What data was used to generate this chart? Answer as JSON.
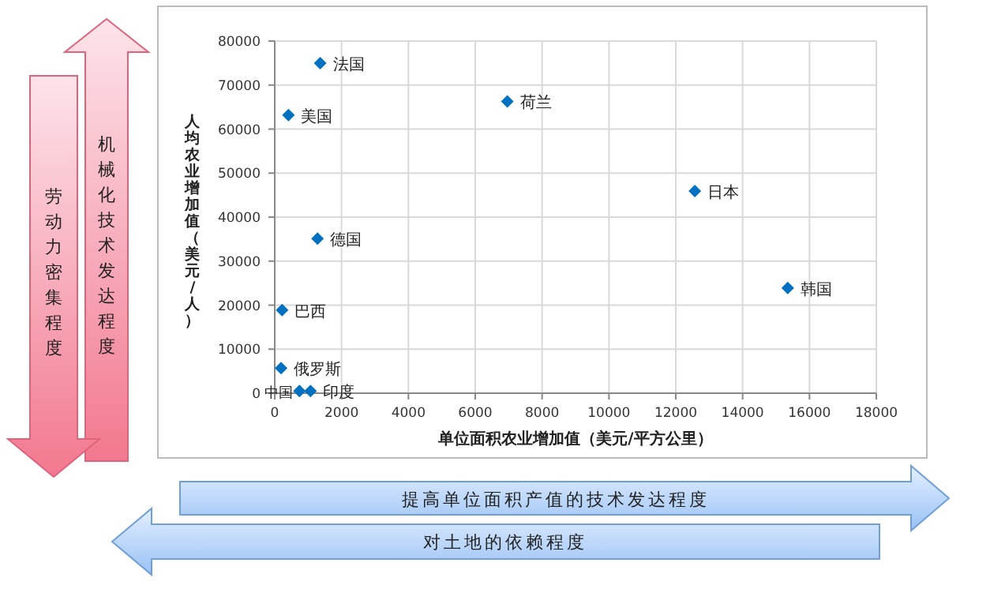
{
  "chart_data": {
    "type": "scatter",
    "xlabel": "单位面积农业增加值（美元/平方公里）",
    "ylabel": "人均农业增加值（美元/人）",
    "xlim": [
      0,
      18000
    ],
    "ylim": [
      0,
      80000
    ],
    "xticks": [
      0,
      2000,
      4000,
      6000,
      8000,
      10000,
      12000,
      14000,
      16000,
      18000
    ],
    "yticks": [
      0,
      10000,
      20000,
      30000,
      40000,
      50000,
      60000,
      70000,
      80000
    ],
    "grid": true,
    "marker": "diamond",
    "series": [
      {
        "name": "法国",
        "color": "#0070c0",
        "x": [
          1360
        ],
        "values": [
          75000
        ]
      },
      {
        "name": "荷兰",
        "color": "#0070c0",
        "x": [
          6960
        ],
        "values": [
          66300
        ]
      },
      {
        "name": "美国",
        "color": "#0070c0",
        "x": [
          410
        ],
        "values": [
          63200
        ]
      },
      {
        "name": "日本",
        "color": "#0070c0",
        "x": [
          12570
        ],
        "values": [
          45900
        ]
      },
      {
        "name": "德国",
        "color": "#0070c0",
        "x": [
          1280
        ],
        "values": [
          35100
        ]
      },
      {
        "name": "韩国",
        "color": "#0070c0",
        "x": [
          15350
        ],
        "values": [
          23900
        ]
      },
      {
        "name": "巴西",
        "color": "#0070c0",
        "x": [
          220
        ],
        "values": [
          18900
        ]
      },
      {
        "name": "俄罗斯",
        "color": "#0070c0",
        "x": [
          190
        ],
        "values": [
          5700
        ]
      },
      {
        "name": "中国",
        "color": "#0070c0",
        "x": [
          740
        ],
        "values": [
          500
        ]
      },
      {
        "name": "印度",
        "color": "#0070c0",
        "x": [
          1070
        ],
        "values": [
          500
        ]
      }
    ],
    "annotations": [
      "机械化技术发达程度",
      "劳动力密集程度",
      "提高单位面积产值的技术发达程度",
      "对土地的依赖程度"
    ]
  }
}
